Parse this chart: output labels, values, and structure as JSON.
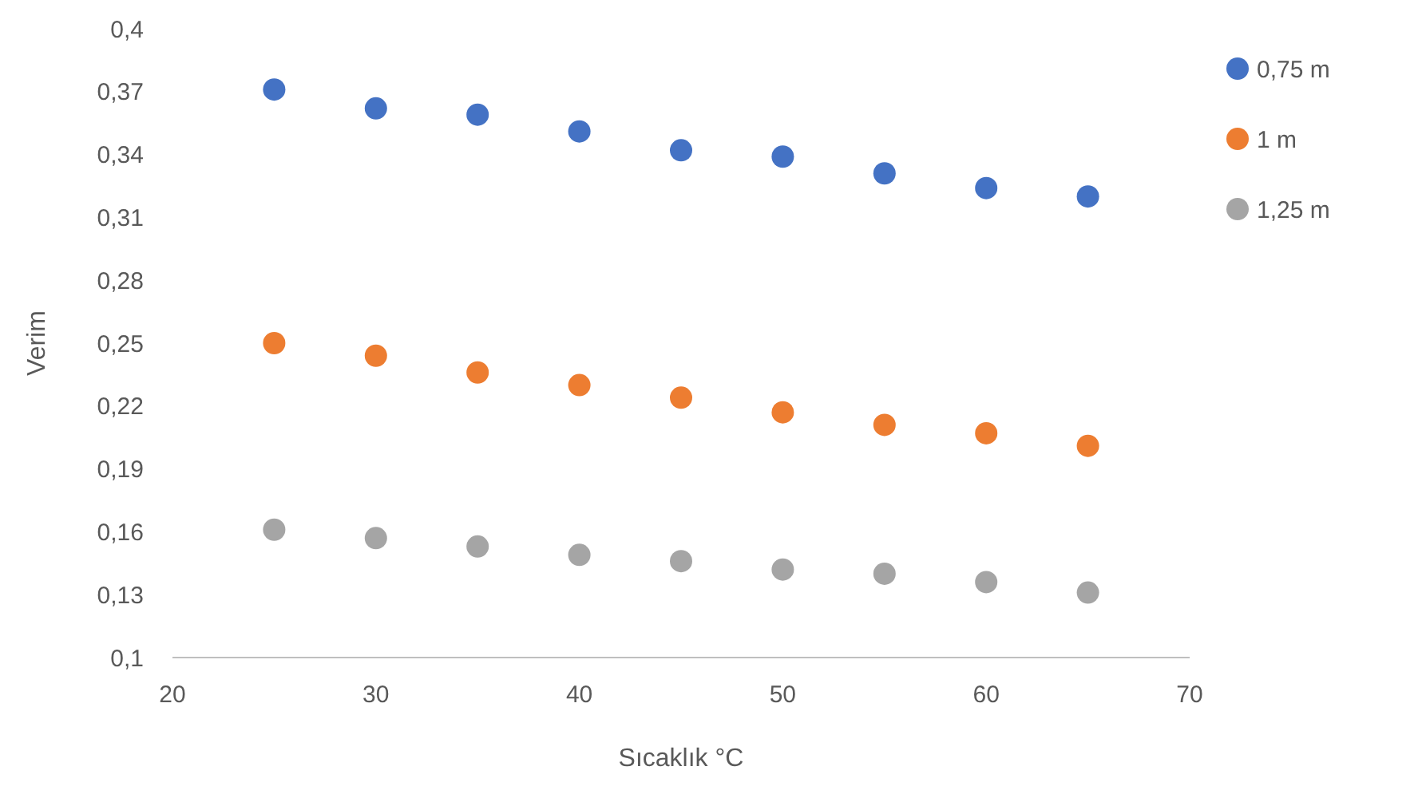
{
  "chart_data": {
    "type": "scatter",
    "xlabel": "Sıcaklık °C",
    "ylabel": "Verim",
    "x": [
      25,
      30,
      35,
      40,
      45,
      50,
      55,
      60,
      65
    ],
    "series": [
      {
        "name": "0,75 m",
        "color": "#4472c4",
        "values": [
          0.371,
          0.362,
          0.359,
          0.351,
          0.342,
          0.339,
          0.331,
          0.324,
          0.32
        ]
      },
      {
        "name": "1 m",
        "color": "#ed7d31",
        "values": [
          0.25,
          0.244,
          0.236,
          0.23,
          0.224,
          0.217,
          0.211,
          0.207,
          0.201
        ]
      },
      {
        "name": "1,25 m",
        "color": "#a5a5a5",
        "values": [
          0.161,
          0.157,
          0.153,
          0.149,
          0.146,
          0.142,
          0.14,
          0.136,
          0.131
        ]
      }
    ],
    "xlim": [
      20,
      70
    ],
    "xticks": [
      20,
      30,
      40,
      50,
      60,
      70
    ],
    "ylim": [
      0.1,
      0.4
    ],
    "yticks": [
      {
        "value": 0.1,
        "label": "0,1"
      },
      {
        "value": 0.13,
        "label": "0,13"
      },
      {
        "value": 0.16,
        "label": "0,16"
      },
      {
        "value": 0.19,
        "label": "0,19"
      },
      {
        "value": 0.22,
        "label": "0,22"
      },
      {
        "value": 0.25,
        "label": "0,25"
      },
      {
        "value": 0.28,
        "label": "0,28"
      },
      {
        "value": 0.31,
        "label": "0,31"
      },
      {
        "value": 0.34,
        "label": "0,34"
      },
      {
        "value": 0.37,
        "label": "0,37"
      },
      {
        "value": 0.4,
        "label": "0,4"
      }
    ],
    "grid": false,
    "legend": "right",
    "marker": "circle"
  }
}
